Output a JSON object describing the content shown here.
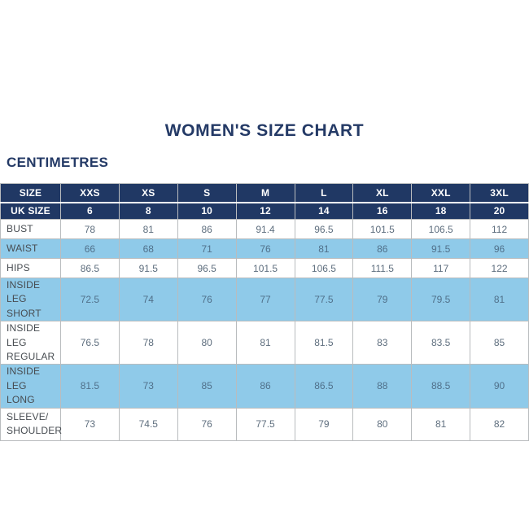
{
  "page": {
    "title": "WOMEN'S SIZE CHART",
    "subtitle": "CENTIMETRES"
  },
  "colors": {
    "header_navy": "#203864",
    "title_navy": "#243a66",
    "row_light_blue": "#8fcae9",
    "cell_text": "#5e6e7e",
    "label_text": "#474c51",
    "grid_border": "#b9bcbe"
  },
  "table": {
    "size_header": {
      "label": "SIZE",
      "values": [
        "XXS",
        "XS",
        "S",
        "M",
        "L",
        "XL",
        "XXL",
        "3XL"
      ]
    },
    "uk_size_header": {
      "label": "UK SIZE",
      "values": [
        "6",
        "8",
        "10",
        "12",
        "14",
        "16",
        "18",
        "20"
      ]
    },
    "rows": [
      {
        "label": "BUST",
        "values": [
          "78",
          "81",
          "86",
          "91.4",
          "96.5",
          "101.5",
          "106.5",
          "112"
        ]
      },
      {
        "label": "WAIST",
        "values": [
          "66",
          "68",
          "71",
          "76",
          "81",
          "86",
          "91.5",
          "96"
        ]
      },
      {
        "label": "HIPS",
        "values": [
          "86.5",
          "91.5",
          "96.5",
          "101.5",
          "106.5",
          "111.5",
          "117",
          "122"
        ]
      },
      {
        "label": "INSIDE LEG\nSHORT",
        "values": [
          "72.5",
          "74",
          "76",
          "77",
          "77.5",
          "79",
          "79.5",
          "81"
        ]
      },
      {
        "label": "INSIDE LEG\nREGULAR",
        "values": [
          "76.5",
          "78",
          "80",
          "81",
          "81.5",
          "83",
          "83.5",
          "85"
        ]
      },
      {
        "label": "INSIDE LEG\nLONG",
        "values": [
          "81.5",
          "73",
          "85",
          "86",
          "86.5",
          "88",
          "88.5",
          "90"
        ]
      },
      {
        "label": "SLEEVE/\nSHOULDER",
        "values": [
          "73",
          "74.5",
          "76",
          "77.5",
          "79",
          "80",
          "81",
          "82"
        ]
      }
    ]
  },
  "chart_data": {
    "type": "table",
    "title": "WOMEN'S SIZE CHART",
    "unit_label": "CENTIMETRES",
    "columns": [
      "SIZE",
      "XXS",
      "XS",
      "S",
      "M",
      "L",
      "XL",
      "XXL",
      "3XL"
    ],
    "rows": [
      [
        "UK SIZE",
        6,
        8,
        10,
        12,
        14,
        16,
        18,
        20
      ],
      [
        "BUST",
        78,
        81,
        86,
        91.4,
        96.5,
        101.5,
        106.5,
        112
      ],
      [
        "WAIST",
        66,
        68,
        71,
        76,
        81,
        86,
        91.5,
        96
      ],
      [
        "HIPS",
        86.5,
        91.5,
        96.5,
        101.5,
        106.5,
        111.5,
        117,
        122
      ],
      [
        "INSIDE LEG SHORT",
        72.5,
        74,
        76,
        77,
        77.5,
        79,
        79.5,
        81
      ],
      [
        "INSIDE LEG REGULAR",
        76.5,
        78,
        80,
        81,
        81.5,
        83,
        83.5,
        85
      ],
      [
        "INSIDE LEG LONG",
        81.5,
        73,
        85,
        86,
        86.5,
        88,
        88.5,
        90
      ],
      [
        "SLEEVE/SHOULDER",
        73,
        74.5,
        76,
        77.5,
        79,
        80,
        81,
        82
      ]
    ],
    "layout": {
      "alternating_row_fill": [
        "#ffffff",
        "#8fcae9"
      ],
      "header_fill": "#203864",
      "grid": true
    }
  }
}
